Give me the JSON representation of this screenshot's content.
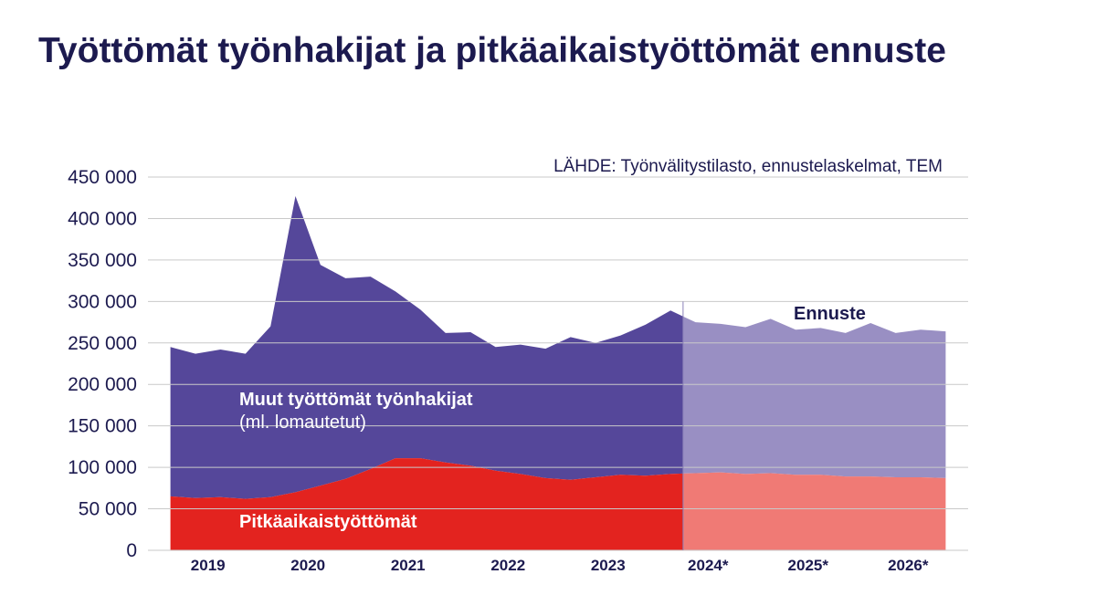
{
  "title": "Työttömät työnhakijat ja pitkäaikaistyöttömät ennuste",
  "source": "LÄHDE: Työnvälitystilasto, ennustelaskelmat, TEM",
  "colors": {
    "other": "#55479a",
    "other_forecast": "#998fc3",
    "longterm": "#e3231f",
    "longterm_forecast": "#f07a75",
    "text": "#1c1a4f",
    "grid": "#c9c9c9"
  },
  "chart_data": {
    "type": "area",
    "stacked": true,
    "x_tick_labels": [
      "2019",
      "2020",
      "2021",
      "2022",
      "2023",
      "2024*",
      "2025*",
      "2026*"
    ],
    "x_tick_positions": [
      2019.5,
      2020.5,
      2021.5,
      2022.5,
      2023.5,
      2024.5,
      2025.5,
      2026.5
    ],
    "xlim": [
      2018.9,
      2027.1
    ],
    "ylim": [
      0,
      450000
    ],
    "y_ticks": [
      0,
      50000,
      100000,
      150000,
      200000,
      250000,
      300000,
      350000,
      400000,
      450000
    ],
    "y_tick_labels": [
      "0",
      "50 000",
      "100 000",
      "150 000",
      "200 000",
      "250 000",
      "300 000",
      "350 000",
      "400 000",
      "450 000"
    ],
    "grid": "horizontal",
    "forecast_start": 2024.25,
    "x": [
      2019.125,
      2019.375,
      2019.625,
      2019.875,
      2020.125,
      2020.375,
      2020.625,
      2020.875,
      2021.125,
      2021.375,
      2021.625,
      2021.875,
      2022.125,
      2022.375,
      2022.625,
      2022.875,
      2023.125,
      2023.375,
      2023.625,
      2023.875,
      2024.125,
      2024.375,
      2024.625,
      2024.875,
      2025.125,
      2025.375,
      2025.625,
      2025.875,
      2026.125,
      2026.375,
      2026.625,
      2026.875
    ],
    "series": [
      {
        "name": "Pitkäaikaistyöttömät",
        "values": [
          65000,
          63000,
          64000,
          62000,
          64000,
          70000,
          78000,
          86000,
          98000,
          111000,
          111000,
          106000,
          102000,
          96000,
          92000,
          87000,
          85000,
          88000,
          91000,
          90000,
          92000,
          93000,
          94000,
          92000,
          93000,
          91000,
          91000,
          89000,
          89000,
          88000,
          88000,
          87000
        ]
      },
      {
        "name": "Muut työttömät työnhakijat",
        "name_note": "(ml. lomautetut)",
        "total_values": [
          245000,
          237000,
          242000,
          237000,
          270000,
          427000,
          344000,
          328000,
          330000,
          312000,
          290000,
          262000,
          263000,
          245000,
          248000,
          243000,
          257000,
          250000,
          259000,
          272000,
          289000,
          275000,
          273000,
          269000,
          279000,
          266000,
          268000,
          262000,
          274000,
          262000,
          266000,
          264000
        ]
      }
    ],
    "annotations": [
      "Ennuste"
    ]
  }
}
